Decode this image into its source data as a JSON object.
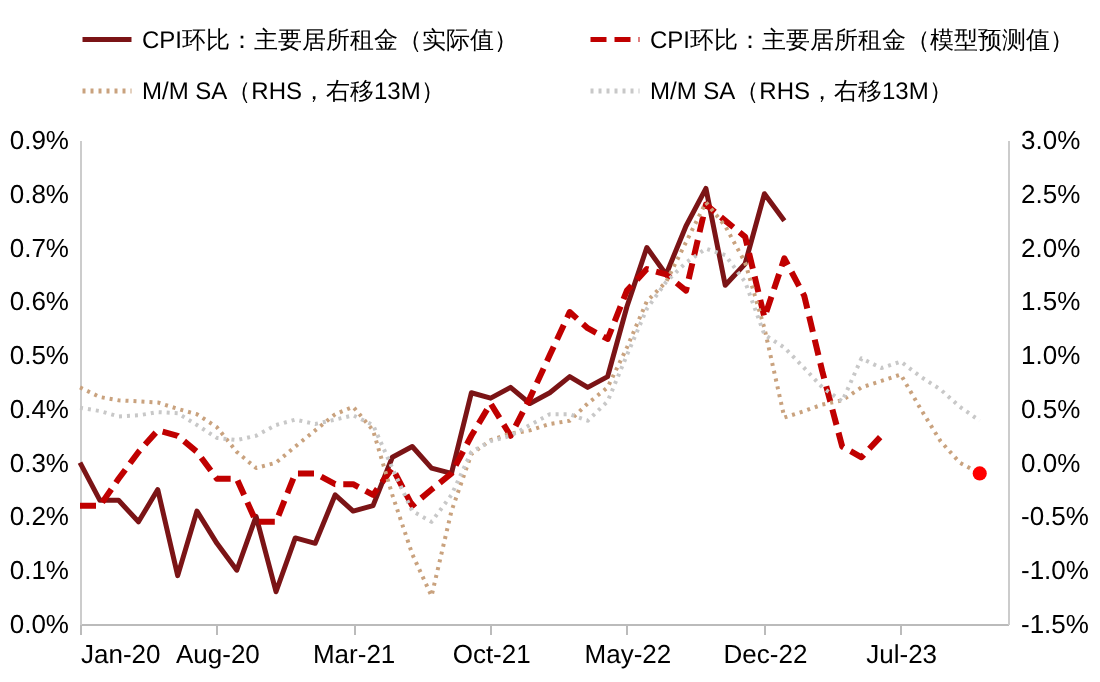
{
  "chart_data": {
    "type": "line",
    "x": [
      "2020-01",
      "2020-02",
      "2020-03",
      "2020-04",
      "2020-05",
      "2020-06",
      "2020-07",
      "2020-08",
      "2020-09",
      "2020-10",
      "2020-11",
      "2020-12",
      "2021-01",
      "2021-02",
      "2021-03",
      "2021-04",
      "2021-05",
      "2021-06",
      "2021-07",
      "2021-08",
      "2021-09",
      "2021-10",
      "2021-11",
      "2021-12",
      "2022-01",
      "2022-02",
      "2022-03",
      "2022-04",
      "2022-05",
      "2022-06",
      "2022-07",
      "2022-08",
      "2022-09",
      "2022-10",
      "2022-11",
      "2022-12",
      "2023-01",
      "2023-02",
      "2023-03",
      "2023-04",
      "2023-05",
      "2023-06",
      "2023-07",
      "2023-08",
      "2023-09",
      "2023-10",
      "2023-11"
    ],
    "series": [
      {
        "name": "CPI环比：主要居所租金（实际值）",
        "color": "#7b1416",
        "line_style": "solid",
        "values": [
          0.3,
          0.23,
          0.23,
          0.19,
          0.25,
          0.09,
          0.21,
          0.15,
          0.1,
          0.2,
          0.06,
          0.16,
          0.15,
          0.24,
          0.21,
          0.22,
          0.31,
          0.33,
          0.29,
          0.28,
          0.43,
          0.42,
          0.44,
          0.41,
          0.43,
          0.46,
          0.44,
          0.46,
          0.59,
          0.7,
          0.65,
          0.74,
          0.81,
          0.63,
          0.67,
          0.8,
          0.75,
          null,
          null,
          null,
          null,
          null,
          null,
          null,
          null,
          null,
          null
        ]
      },
      {
        "name": "CPI环比：主要居所租金（模型预测值）",
        "color": "#c00000",
        "line_style": "dashed",
        "values": [
          0.22,
          0.22,
          0.27,
          0.32,
          0.36,
          0.35,
          0.32,
          0.27,
          0.27,
          0.19,
          0.19,
          0.28,
          0.28,
          0.26,
          0.26,
          0.24,
          0.29,
          0.22,
          0.25,
          0.28,
          0.35,
          0.41,
          0.35,
          0.42,
          0.5,
          0.58,
          0.55,
          0.53,
          0.62,
          0.66,
          0.65,
          0.62,
          0.78,
          0.75,
          0.72,
          0.57,
          0.68,
          0.61,
          0.47,
          0.33,
          0.31,
          0.35,
          null,
          null,
          null,
          null,
          null
        ]
      },
      {
        "name": "M/M SA（RHS，右移13M）",
        "color": "#c9a27e",
        "line_style": "dotted",
        "axis": "y2",
        "values": [
          0.7,
          0.61,
          0.58,
          0.57,
          0.56,
          0.5,
          0.45,
          0.33,
          0.1,
          -0.05,
          0.0,
          0.15,
          0.3,
          0.45,
          0.52,
          0.3,
          -0.3,
          -0.85,
          -1.24,
          -0.45,
          0.08,
          0.21,
          0.27,
          0.3,
          0.36,
          0.39,
          0.55,
          0.7,
          1.07,
          1.5,
          1.68,
          2.05,
          2.42,
          2.2,
          1.86,
          1.25,
          0.42,
          0.48,
          0.54,
          0.58,
          0.7,
          0.76,
          0.82,
          0.5,
          0.2,
          0.0,
          -0.1
        ]
      },
      {
        "name": "M/M SA（RHS，右移13M）",
        "color": "#c8c8c8",
        "line_style": "dotted",
        "axis": "y2",
        "values": [
          0.51,
          0.48,
          0.43,
          0.44,
          0.47,
          0.46,
          0.35,
          0.23,
          0.21,
          0.25,
          0.35,
          0.4,
          0.36,
          0.4,
          0.44,
          0.35,
          -0.05,
          -0.45,
          -0.55,
          -0.3,
          0.1,
          0.2,
          0.25,
          0.35,
          0.45,
          0.45,
          0.39,
          0.57,
          1.0,
          1.43,
          1.68,
          1.86,
          1.99,
          1.93,
          1.68,
          1.19,
          1.07,
          0.88,
          0.7,
          0.57,
          0.97,
          0.88,
          0.94,
          0.8,
          0.68,
          0.52,
          0.39
        ]
      },
      {
        "type": "scatter",
        "marker": "circle",
        "color": "#ff0000",
        "axis": "y2",
        "x": [
          "2023-11"
        ],
        "values": [
          -0.1
        ]
      }
    ],
    "xlim": [
      "2020-01",
      "2023-12-15"
    ],
    "xticks": [
      {
        "value": "2020-01",
        "label": "Jan-20"
      },
      {
        "value": "2020-08",
        "label": "Aug-20"
      },
      {
        "value": "2021-03",
        "label": "Mar-21"
      },
      {
        "value": "2021-10",
        "label": "Oct-21"
      },
      {
        "value": "2022-05",
        "label": "May-22"
      },
      {
        "value": "2022-12",
        "label": "Dec-22"
      },
      {
        "value": "2023-07",
        "label": "Jul-23"
      }
    ],
    "ylim": [
      0,
      0.9
    ],
    "yticks": [
      {
        "value": 0,
        "label": "0.0%"
      },
      {
        "value": 0.1,
        "label": "0.1%"
      },
      {
        "value": 0.2,
        "label": "0.2%"
      },
      {
        "value": 0.3,
        "label": "0.3%"
      },
      {
        "value": 0.4,
        "label": "0.4%"
      },
      {
        "value": 0.5,
        "label": "0.5%"
      },
      {
        "value": 0.6,
        "label": "0.6%"
      },
      {
        "value": 0.7,
        "label": "0.7%"
      },
      {
        "value": 0.8,
        "label": "0.8%"
      },
      {
        "value": 0.9,
        "label": "0.9%"
      }
    ],
    "y2lim": [
      -1.5,
      3.0
    ],
    "y2ticks": [
      {
        "value": -1.5,
        "label": "-1.5%"
      },
      {
        "value": -1.0,
        "label": "-1.0%"
      },
      {
        "value": -0.5,
        "label": "-0.5%"
      },
      {
        "value": 0,
        "label": "0.0%"
      },
      {
        "value": 0.5,
        "label": "0.5%"
      },
      {
        "value": 1.0,
        "label": "1.0%"
      },
      {
        "value": 1.5,
        "label": "1.5%"
      },
      {
        "value": 2.0,
        "label": "2.0%"
      },
      {
        "value": 2.5,
        "label": "2.5%"
      },
      {
        "value": 3.0,
        "label": "3.0%"
      }
    ],
    "legend": "top"
  }
}
